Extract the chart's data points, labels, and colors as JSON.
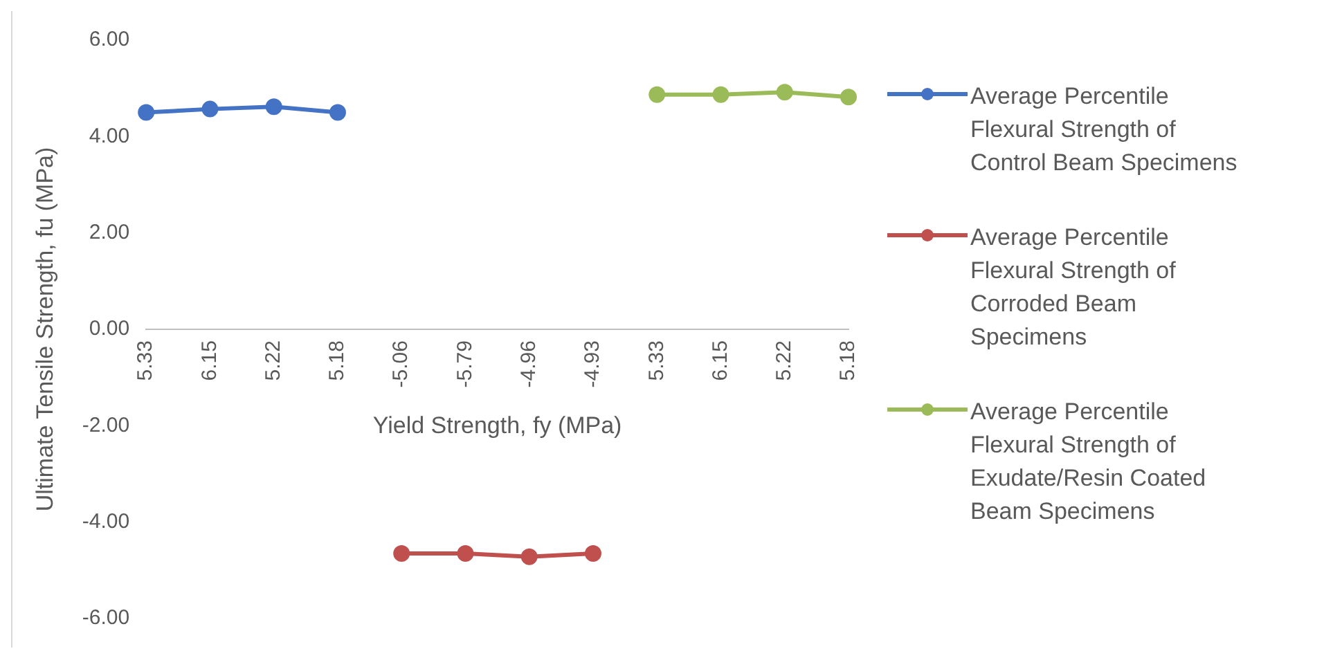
{
  "chart_data": {
    "type": "line",
    "xlabel": "Yield Strength, fy (MPa)",
    "ylabel": "Ultimate Tensile Strength, fu (MPa)",
    "categories": [
      "5.33",
      "6.15",
      "5.22",
      "5.18",
      "-5.06",
      "-5.79",
      "-4.96",
      "-4.93",
      "5.33",
      "6.15",
      "5.22",
      "5.18"
    ],
    "series": [
      {
        "name": "Average Percentile Flexural Strength of Control Beam Specimens",
        "color": "#4472c4",
        "values": [
          4.5,
          4.57,
          4.62,
          4.5,
          null,
          null,
          null,
          null,
          null,
          null,
          null,
          null
        ]
      },
      {
        "name": "Average Percentile Flexural Strength of Corroded Beam Specimens",
        "color": "#c0504d",
        "values": [
          null,
          null,
          null,
          null,
          -4.65,
          -4.65,
          -4.72,
          -4.65,
          null,
          null,
          null,
          null
        ]
      },
      {
        "name": "Average Percentile Flexural Strength of Exudate/Resin Coated Beam Specimens",
        "color": "#9bbb59",
        "values": [
          null,
          null,
          null,
          null,
          null,
          null,
          null,
          null,
          4.87,
          4.87,
          4.92,
          4.82
        ]
      }
    ],
    "ylim": [
      -6,
      6
    ],
    "yticks": [
      {
        "value": -6,
        "label": "-6.00"
      },
      {
        "value": -4,
        "label": "-4.00"
      },
      {
        "value": -2,
        "label": "-2.00"
      },
      {
        "value": 0,
        "label": "0.00"
      },
      {
        "value": 2,
        "label": "2.00"
      },
      {
        "value": 4,
        "label": "4.00"
      },
      {
        "value": 6,
        "label": "6.00"
      }
    ],
    "grid": false,
    "legend": "right",
    "marker": "circle",
    "line_style": "solid"
  }
}
